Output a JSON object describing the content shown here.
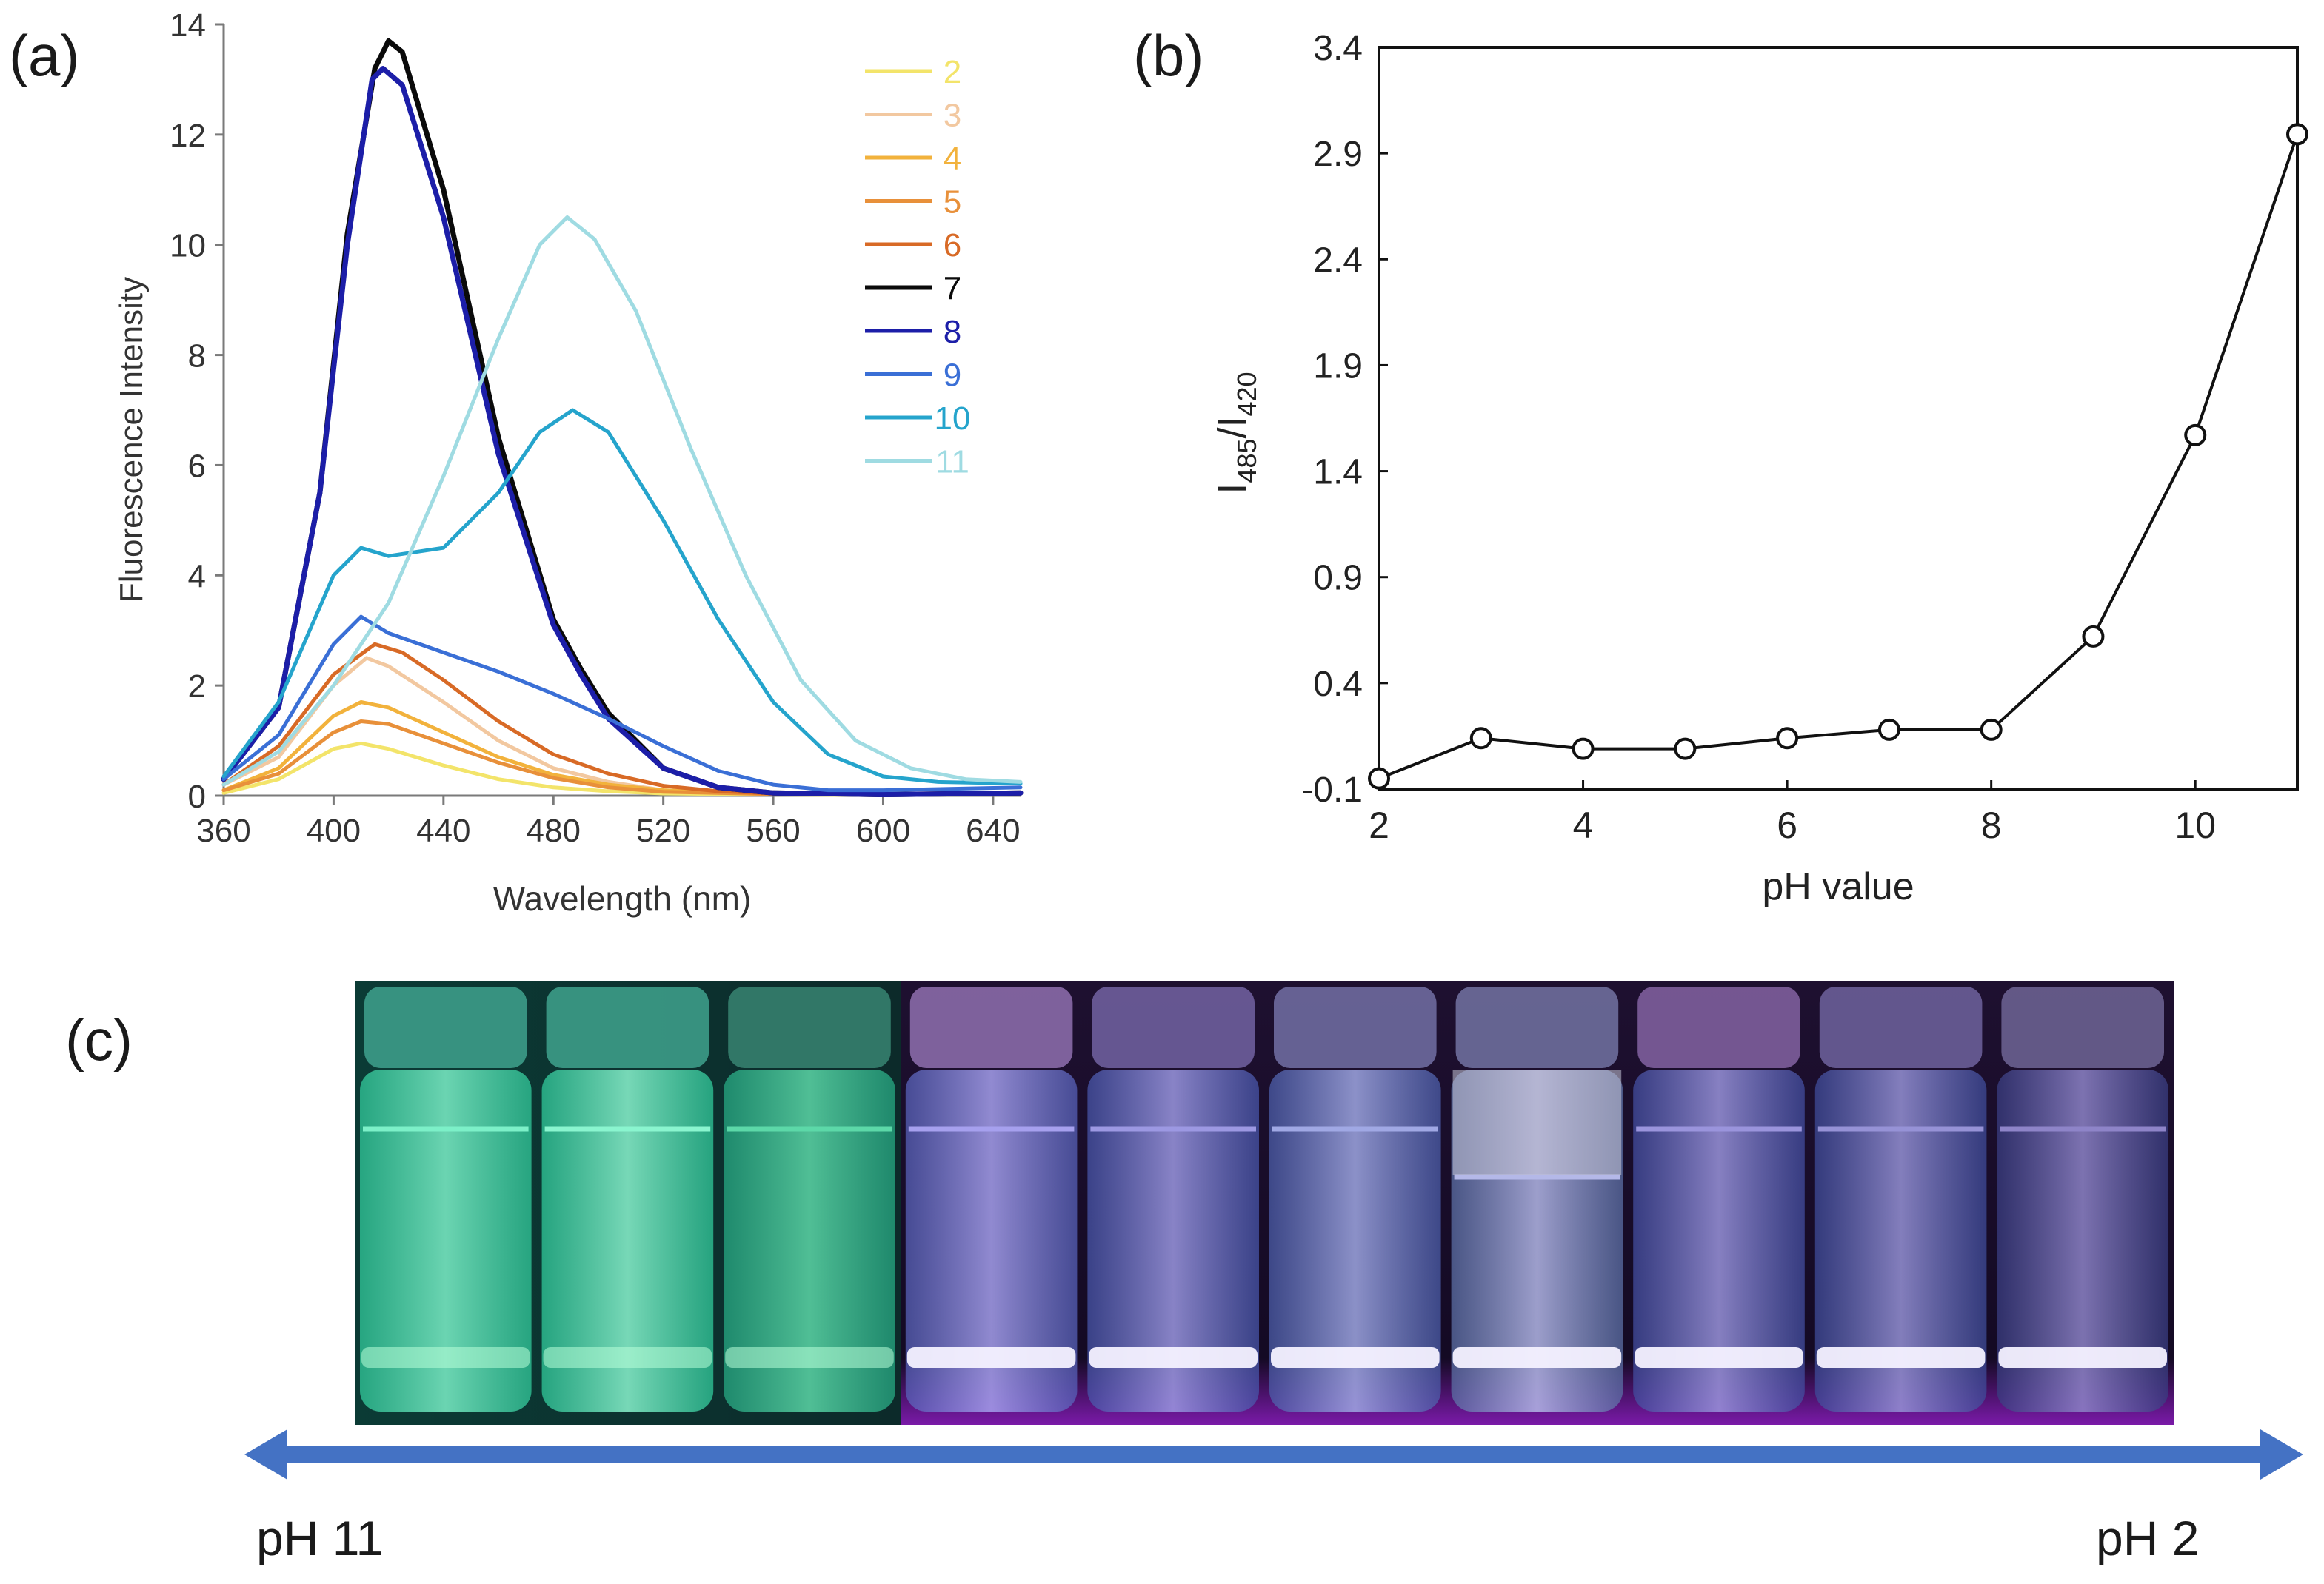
{
  "panels": {
    "a": "(a)",
    "b": "(b)",
    "c": "(c)"
  },
  "chart_data": [
    {
      "type": "line",
      "xlabel": "Wavelength (nm)",
      "ylabel": "Fluorescence Intensity",
      "xlim": [
        360,
        650
      ],
      "ylim": [
        0,
        14
      ],
      "xticks": [
        360,
        400,
        440,
        480,
        520,
        560,
        600,
        640
      ],
      "yticks": [
        0,
        2,
        4,
        6,
        8,
        10,
        12,
        14
      ],
      "grid": false,
      "legend": "top-right",
      "series": [
        {
          "name": "2",
          "color": "#f3e46a",
          "points": [
            [
              360,
              0.05
            ],
            [
              380,
              0.3
            ],
            [
              400,
              0.85
            ],
            [
              410,
              0.95
            ],
            [
              420,
              0.85
            ],
            [
              440,
              0.55
            ],
            [
              460,
              0.3
            ],
            [
              480,
              0.15
            ],
            [
              500,
              0.08
            ],
            [
              520,
              0.04
            ],
            [
              560,
              0.02
            ],
            [
              600,
              0.01
            ],
            [
              650,
              0.05
            ]
          ]
        },
        {
          "name": "3",
          "color": "#f2c8a0",
          "points": [
            [
              360,
              0.2
            ],
            [
              380,
              0.7
            ],
            [
              400,
              2.0
            ],
            [
              412,
              2.5
            ],
            [
              420,
              2.35
            ],
            [
              440,
              1.7
            ],
            [
              460,
              1.0
            ],
            [
              480,
              0.5
            ],
            [
              500,
              0.25
            ],
            [
              520,
              0.1
            ],
            [
              560,
              0.03
            ],
            [
              600,
              0.02
            ],
            [
              650,
              0.05
            ]
          ]
        },
        {
          "name": "4",
          "color": "#f2b23c",
          "points": [
            [
              360,
              0.1
            ],
            [
              380,
              0.5
            ],
            [
              400,
              1.45
            ],
            [
              410,
              1.7
            ],
            [
              420,
              1.6
            ],
            [
              440,
              1.15
            ],
            [
              460,
              0.7
            ],
            [
              480,
              0.38
            ],
            [
              500,
              0.2
            ],
            [
              520,
              0.1
            ],
            [
              560,
              0.03
            ],
            [
              600,
              0.02
            ],
            [
              650,
              0.05
            ]
          ]
        },
        {
          "name": "5",
          "color": "#e8903a",
          "points": [
            [
              360,
              0.1
            ],
            [
              380,
              0.4
            ],
            [
              400,
              1.15
            ],
            [
              410,
              1.35
            ],
            [
              420,
              1.3
            ],
            [
              440,
              0.95
            ],
            [
              460,
              0.6
            ],
            [
              480,
              0.32
            ],
            [
              500,
              0.15
            ],
            [
              520,
              0.07
            ],
            [
              560,
              0.03
            ],
            [
              600,
              0.02
            ],
            [
              650,
              0.05
            ]
          ]
        },
        {
          "name": "6",
          "color": "#d86a26",
          "points": [
            [
              360,
              0.2
            ],
            [
              380,
              0.9
            ],
            [
              400,
              2.2
            ],
            [
              415,
              2.75
            ],
            [
              425,
              2.6
            ],
            [
              440,
              2.1
            ],
            [
              460,
              1.35
            ],
            [
              480,
              0.75
            ],
            [
              500,
              0.4
            ],
            [
              520,
              0.18
            ],
            [
              540,
              0.08
            ],
            [
              560,
              0.04
            ],
            [
              600,
              0.02
            ],
            [
              650,
              0.05
            ]
          ]
        },
        {
          "name": "7",
          "color": "#0a0a0a",
          "points": [
            [
              360,
              0.3
            ],
            [
              380,
              1.6
            ],
            [
              395,
              5.5
            ],
            [
              405,
              10.2
            ],
            [
              415,
              13.2
            ],
            [
              420,
              13.7
            ],
            [
              425,
              13.5
            ],
            [
              440,
              11.0
            ],
            [
              460,
              6.5
            ],
            [
              480,
              3.2
            ],
            [
              490,
              2.3
            ],
            [
              500,
              1.5
            ],
            [
              520,
              0.5
            ],
            [
              540,
              0.15
            ],
            [
              560,
              0.05
            ],
            [
              600,
              0.02
            ],
            [
              650,
              0.05
            ]
          ]
        },
        {
          "name": "8",
          "color": "#1c1ea8",
          "points": [
            [
              360,
              0.3
            ],
            [
              380,
              1.6
            ],
            [
              395,
              5.5
            ],
            [
              405,
              10.0
            ],
            [
              414,
              13.0
            ],
            [
              418,
              13.2
            ],
            [
              425,
              12.9
            ],
            [
              440,
              10.5
            ],
            [
              460,
              6.2
            ],
            [
              480,
              3.1
            ],
            [
              490,
              2.2
            ],
            [
              500,
              1.4
            ],
            [
              520,
              0.5
            ],
            [
              540,
              0.15
            ],
            [
              560,
              0.05
            ],
            [
              600,
              0.02
            ],
            [
              650,
              0.05
            ]
          ]
        },
        {
          "name": "9",
          "color": "#3a6fd6",
          "points": [
            [
              360,
              0.3
            ],
            [
              380,
              1.1
            ],
            [
              400,
              2.75
            ],
            [
              410,
              3.25
            ],
            [
              420,
              2.95
            ],
            [
              440,
              2.6
            ],
            [
              460,
              2.25
            ],
            [
              480,
              1.85
            ],
            [
              500,
              1.4
            ],
            [
              520,
              0.9
            ],
            [
              540,
              0.45
            ],
            [
              560,
              0.2
            ],
            [
              580,
              0.1
            ],
            [
              600,
              0.1
            ],
            [
              650,
              0.15
            ]
          ]
        },
        {
          "name": "10",
          "color": "#25a4cc",
          "points": [
            [
              360,
              0.35
            ],
            [
              380,
              1.7
            ],
            [
              400,
              4.0
            ],
            [
              410,
              4.5
            ],
            [
              420,
              4.35
            ],
            [
              440,
              4.5
            ],
            [
              460,
              5.5
            ],
            [
              475,
              6.6
            ],
            [
              487,
              7.0
            ],
            [
              500,
              6.6
            ],
            [
              520,
              5.0
            ],
            [
              540,
              3.2
            ],
            [
              560,
              1.7
            ],
            [
              580,
              0.75
            ],
            [
              600,
              0.35
            ],
            [
              620,
              0.25
            ],
            [
              650,
              0.22
            ]
          ]
        },
        {
          "name": "11",
          "color": "#9fdbe2",
          "points": [
            [
              360,
              0.2
            ],
            [
              380,
              0.8
            ],
            [
              400,
              2.0
            ],
            [
              420,
              3.5
            ],
            [
              440,
              5.8
            ],
            [
              460,
              8.3
            ],
            [
              475,
              10.0
            ],
            [
              485,
              10.5
            ],
            [
              495,
              10.1
            ],
            [
              510,
              8.8
            ],
            [
              530,
              6.3
            ],
            [
              550,
              4.0
            ],
            [
              570,
              2.1
            ],
            [
              590,
              1.0
            ],
            [
              610,
              0.5
            ],
            [
              630,
              0.3
            ],
            [
              650,
              0.25
            ]
          ]
        }
      ]
    },
    {
      "type": "line",
      "xlabel": "pH value",
      "ylabel_main": "I",
      "ylabel_sub1": "485",
      "ylabel_sep": "/I",
      "ylabel_sub2": "420",
      "xlim": [
        2,
        11
      ],
      "ylim": [
        -0.1,
        3.4
      ],
      "xticks": [
        2,
        4,
        6,
        8,
        10
      ],
      "yticks": [
        -0.1,
        0.4,
        0.9,
        1.4,
        1.9,
        2.4,
        2.9,
        3.4
      ],
      "grid": false,
      "marker": "open-circle",
      "series": [
        {
          "x": [
            2,
            3,
            4,
            5,
            6,
            7,
            8,
            9,
            10,
            11
          ],
          "y": [
            -0.05,
            0.14,
            0.09,
            0.09,
            0.14,
            0.18,
            0.18,
            0.62,
            1.57,
            2.99
          ]
        }
      ]
    }
  ],
  "photo": {
    "vials": [
      {
        "body": "#30c99a",
        "glow": "#7cf0c8",
        "cap": "#3c9c88"
      },
      {
        "body": "#2fc99a",
        "glow": "#8af5cf",
        "cap": "#3c9c88"
      },
      {
        "body": "#25a882",
        "glow": "#5cd8a8",
        "cap": "#357f6e"
      },
      {
        "body": "#5660b8",
        "glow": "#a6a0ee",
        "cap": "#8a6aa8"
      },
      {
        "body": "#4654a8",
        "glow": "#9c98e2",
        "cap": "#6e5e9c"
      },
      {
        "body": "#4a5ca8",
        "glow": "#a0a8e4",
        "cap": "#6e6a9e"
      },
      {
        "body": "#5a6ea4",
        "glow": "#b4b8e8",
        "cap": "#6e6e9c"
      },
      {
        "body": "#414c9e",
        "glow": "#9a94dc",
        "cap": "#7e5e9c"
      },
      {
        "body": "#3d4a98",
        "glow": "#9692d6",
        "cap": "#6a5e98"
      },
      {
        "body": "#383c80",
        "glow": "#8e84c8",
        "cap": "#6a6090"
      }
    ],
    "arrow_color": "#4472c4",
    "left_label": "pH 11",
    "right_label": "pH 2"
  }
}
